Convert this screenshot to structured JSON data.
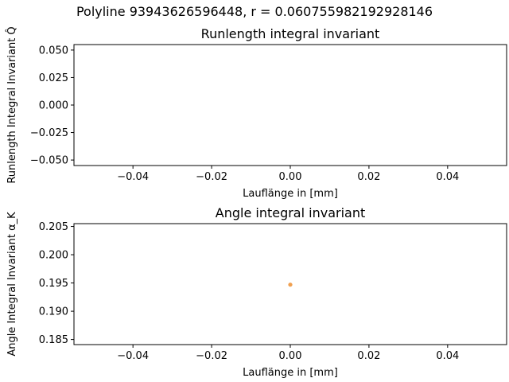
{
  "figure": {
    "suptitle": "Polyline 93943626596448, r = 0.060755982192928146"
  },
  "chart_data": [
    {
      "type": "scatter",
      "title": "Runlength integral invariant",
      "xlabel": "Lauflänge in [mm]",
      "ylabel": "Runlength Integral Invariant Q̂",
      "xlim": [
        -0.055,
        0.055
      ],
      "ylim": [
        -0.055,
        0.055
      ],
      "x_ticks": [
        -0.04,
        -0.02,
        0.0,
        0.02,
        0.04
      ],
      "x_tick_labels": [
        "−0.04",
        "−0.02",
        "0.00",
        "0.02",
        "0.04"
      ],
      "y_ticks": [
        0.05,
        0.025,
        0.0,
        -0.025,
        -0.05
      ],
      "y_tick_labels": [
        "0.050",
        "0.025",
        "0.000",
        "−0.025",
        "−0.050"
      ],
      "grid": false,
      "points": [],
      "color": "#f0a050"
    },
    {
      "type": "scatter",
      "title": "Angle integral invariant",
      "xlabel": "Lauflänge in [mm]",
      "ylabel": "Angle Integral Invariant α_K",
      "xlim": [
        -0.055,
        0.055
      ],
      "ylim": [
        0.1841,
        0.2055
      ],
      "x_ticks": [
        -0.04,
        -0.02,
        0.0,
        0.02,
        0.04
      ],
      "x_tick_labels": [
        "−0.04",
        "−0.02",
        "0.00",
        "0.02",
        "0.04"
      ],
      "y_ticks": [
        0.205,
        0.2,
        0.195,
        0.19,
        0.185
      ],
      "y_tick_labels": [
        "0.205",
        "0.200",
        "0.195",
        "0.190",
        "0.185"
      ],
      "grid": false,
      "points": [
        {
          "x": 0.0,
          "y": 0.1947
        }
      ],
      "color": "#f0a050"
    }
  ]
}
